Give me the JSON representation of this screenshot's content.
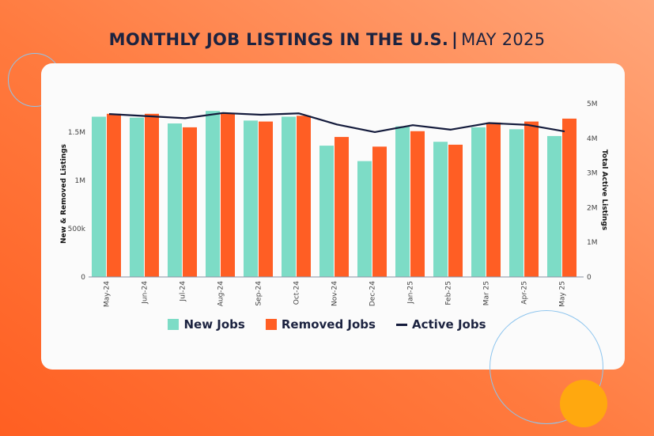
{
  "title": {
    "main": "MONTHLY JOB LISTINGS IN THE U.S.",
    "separator": "|",
    "sub": "MAY 2025"
  },
  "colors": {
    "new_jobs": "#7ddcc6",
    "removed_jobs": "#ff5e24",
    "active_jobs": "#141b3c",
    "accent_circle": "#ffa80f"
  },
  "chart_data": {
    "type": "bar",
    "categories": [
      "May-24",
      "Jun-24",
      "Jul-24",
      "Aug-24",
      "Sep-24",
      "Oct-24",
      "Nov-24",
      "Dec-24",
      "Jan-25",
      "Feb-25",
      "Mar 25",
      "Apr-25",
      "May 25"
    ],
    "series": [
      {
        "name": "New Jobs",
        "type": "bar",
        "axis": "left",
        "values": [
          1660000,
          1650000,
          1590000,
          1720000,
          1620000,
          1660000,
          1360000,
          1200000,
          1560000,
          1400000,
          1550000,
          1530000,
          1460000
        ]
      },
      {
        "name": "Removed Jobs",
        "type": "bar",
        "axis": "left",
        "values": [
          1690000,
          1690000,
          1550000,
          1690000,
          1610000,
          1670000,
          1450000,
          1350000,
          1510000,
          1370000,
          1600000,
          1610000,
          1640000
        ]
      },
      {
        "name": "Active Jobs",
        "type": "line",
        "axis": "right",
        "values": [
          4700000,
          4640000,
          4580000,
          4730000,
          4680000,
          4720000,
          4400000,
          4180000,
          4380000,
          4250000,
          4440000,
          4390000,
          4200000
        ]
      }
    ],
    "ylabel": "New & Removed Listings",
    "y2label": "Total Active Listings",
    "ylim": [
      0,
      1800000
    ],
    "y2lim": [
      0,
      5000000
    ],
    "yticks": [
      {
        "v": 0,
        "label": "0"
      },
      {
        "v": 500000,
        "label": "500k"
      },
      {
        "v": 1000000,
        "label": "1M"
      },
      {
        "v": 1500000,
        "label": "1.5M"
      }
    ],
    "y2ticks": [
      {
        "v": 0,
        "label": "0"
      },
      {
        "v": 1000000,
        "label": "1M"
      },
      {
        "v": 2000000,
        "label": "2M"
      },
      {
        "v": 3000000,
        "label": "3M"
      },
      {
        "v": 4000000,
        "label": "4M"
      },
      {
        "v": 5000000,
        "label": "5M"
      }
    ],
    "grid": false,
    "legend_position": "bottom"
  },
  "legend": [
    "New Jobs",
    "Removed Jobs",
    "Active Jobs"
  ]
}
